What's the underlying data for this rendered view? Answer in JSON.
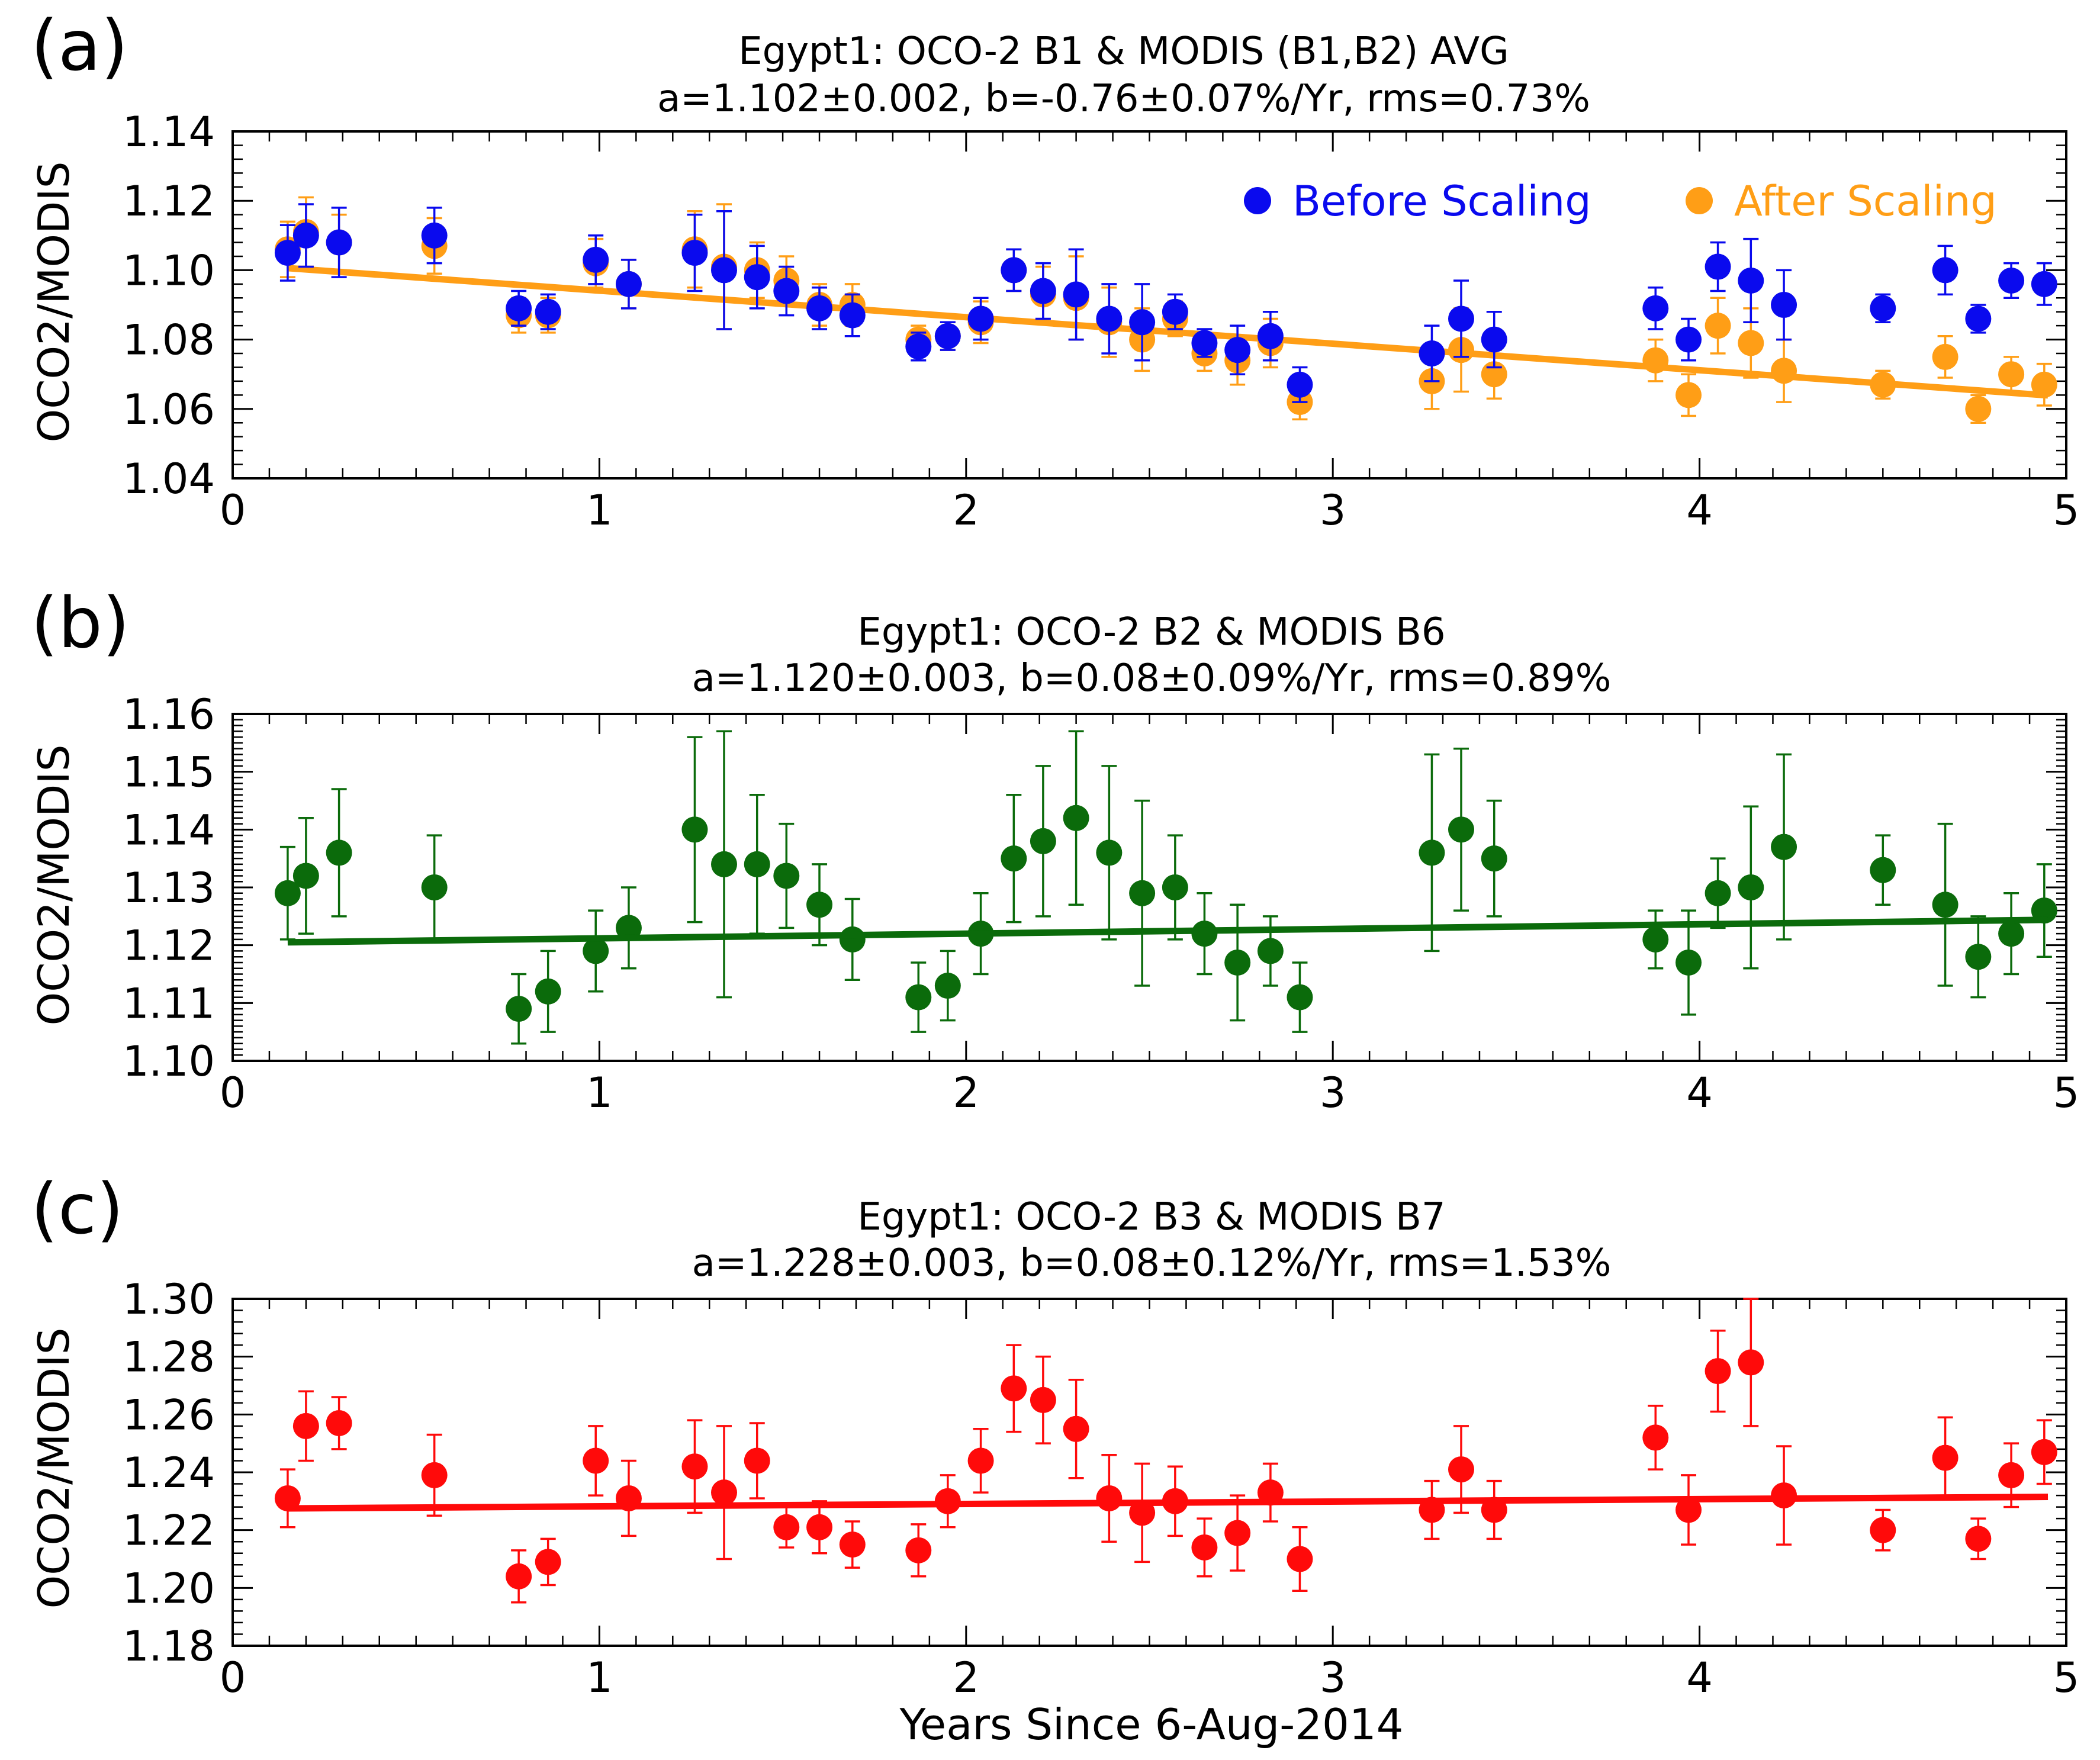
{
  "figure": {
    "xlabel": "Years Since 6-Aug-2014"
  },
  "colors": {
    "blue": "#0a0aee",
    "orange": "#ff9e16",
    "green": "#0b6b0b",
    "red": "#ff0a0a"
  },
  "chart_data": [
    {
      "panel_label": "(a)",
      "type": "scatter",
      "title": "Egypt1: OCO-2 B1 & MODIS (B1,B2) AVG",
      "subtitle": "a=1.102±0.002, b=-0.76±0.07%/Yr, rms=0.73%",
      "ylabel": "OCO2/MODIS",
      "xlim": [
        0,
        5
      ],
      "ylim": [
        1.04,
        1.14
      ],
      "xticks": [
        "0",
        "1",
        "2",
        "3",
        "4",
        "5"
      ],
      "yticks": [
        "1.04",
        "1.06",
        "1.08",
        "1.10",
        "1.12",
        "1.14"
      ],
      "legend": {
        "placement": "top-right",
        "entries": [
          "Before Scaling",
          "After Scaling"
        ]
      },
      "fit": {
        "x": [
          0.15,
          4.95
        ],
        "y": [
          1.1006,
          1.0639
        ],
        "color": "orange"
      },
      "series": [
        {
          "name": "After Scaling",
          "color": "orange",
          "x": [
            0.15,
            0.2,
            0.29,
            0.55,
            0.78,
            0.86,
            0.99,
            1.08,
            1.26,
            1.34,
            1.43,
            1.51,
            1.6,
            1.69,
            1.87,
            1.95,
            2.04,
            2.13,
            2.21,
            2.3,
            2.39,
            2.48,
            2.57,
            2.65,
            2.74,
            2.83,
            2.91,
            3.27,
            3.35,
            3.44,
            3.88,
            3.97,
            4.05,
            4.14,
            4.23,
            4.5,
            4.67,
            4.76,
            4.85,
            4.94
          ],
          "y": [
            1.106,
            1.111,
            1.108,
            1.107,
            1.087,
            1.087,
            1.102,
            1.096,
            1.106,
            1.101,
            1.1,
            1.097,
            1.09,
            1.09,
            1.08,
            1.081,
            1.085,
            1.1,
            1.093,
            1.092,
            1.085,
            1.08,
            1.086,
            1.076,
            1.074,
            1.079,
            1.062,
            1.068,
            1.077,
            1.07,
            1.074,
            1.064,
            1.084,
            1.079,
            1.071,
            1.067,
            1.075,
            1.06,
            1.07,
            1.067
          ],
          "err": [
            0.008,
            0.01,
            0.008,
            0.008,
            0.005,
            0.005,
            0.007,
            0.007,
            0.011,
            0.018,
            0.008,
            0.007,
            0.006,
            0.006,
            0.004,
            0.004,
            0.006,
            0.006,
            0.008,
            0.012,
            0.01,
            0.009,
            0.005,
            0.005,
            0.007,
            0.007,
            0.005,
            0.008,
            0.012,
            0.007,
            0.006,
            0.006,
            0.008,
            0.01,
            0.009,
            0.004,
            0.006,
            0.004,
            0.005,
            0.006
          ]
        },
        {
          "name": "Before Scaling",
          "color": "blue",
          "x": [
            0.15,
            0.2,
            0.29,
            0.55,
            0.78,
            0.86,
            0.99,
            1.08,
            1.26,
            1.34,
            1.43,
            1.51,
            1.6,
            1.69,
            1.87,
            1.95,
            2.04,
            2.13,
            2.21,
            2.3,
            2.39,
            2.48,
            2.57,
            2.65,
            2.74,
            2.83,
            2.91,
            3.27,
            3.35,
            3.44,
            3.88,
            3.97,
            4.05,
            4.14,
            4.23,
            4.5,
            4.67,
            4.76,
            4.85,
            4.94
          ],
          "y": [
            1.105,
            1.11,
            1.108,
            1.11,
            1.089,
            1.088,
            1.103,
            1.096,
            1.105,
            1.1,
            1.098,
            1.094,
            1.089,
            1.087,
            1.078,
            1.081,
            1.086,
            1.1,
            1.094,
            1.093,
            1.086,
            1.085,
            1.088,
            1.079,
            1.077,
            1.081,
            1.067,
            1.076,
            1.086,
            1.08,
            1.089,
            1.08,
            1.101,
            1.097,
            1.09,
            1.089,
            1.1,
            1.086,
            1.097,
            1.096
          ],
          "err": [
            0.008,
            0.009,
            0.01,
            0.008,
            0.005,
            0.005,
            0.007,
            0.007,
            0.011,
            0.017,
            0.009,
            0.007,
            0.006,
            0.006,
            0.004,
            0.004,
            0.006,
            0.006,
            0.008,
            0.013,
            0.01,
            0.011,
            0.005,
            0.004,
            0.007,
            0.007,
            0.005,
            0.008,
            0.011,
            0.008,
            0.006,
            0.006,
            0.007,
            0.012,
            0.01,
            0.004,
            0.007,
            0.004,
            0.005,
            0.006
          ]
        }
      ]
    },
    {
      "panel_label": "(b)",
      "type": "scatter",
      "title": "Egypt1: OCO-2 B2 & MODIS B6",
      "subtitle": "a=1.120±0.003, b=0.08±0.09%/Yr, rms=0.89%",
      "ylabel": "OCO2/MODIS",
      "xlim": [
        0,
        5
      ],
      "ylim": [
        1.1,
        1.16
      ],
      "xticks": [
        "0",
        "1",
        "2",
        "3",
        "4",
        "5"
      ],
      "yticks": [
        "1.10",
        "1.11",
        "1.12",
        "1.13",
        "1.14",
        "1.15",
        "1.16"
      ],
      "fit": {
        "x": [
          0.15,
          4.95
        ],
        "y": [
          1.1205,
          1.1244
        ],
        "color": "green"
      },
      "series": [
        {
          "name": "OCO-2 B2 / MODIS B6",
          "color": "green",
          "x": [
            0.15,
            0.2,
            0.29,
            0.55,
            0.78,
            0.86,
            0.99,
            1.08,
            1.26,
            1.34,
            1.43,
            1.51,
            1.6,
            1.69,
            1.87,
            1.95,
            2.04,
            2.13,
            2.21,
            2.3,
            2.39,
            2.48,
            2.57,
            2.65,
            2.74,
            2.83,
            2.91,
            3.27,
            3.35,
            3.44,
            3.88,
            3.97,
            4.05,
            4.14,
            4.23,
            4.5,
            4.67,
            4.76,
            4.85,
            4.94
          ],
          "y": [
            1.129,
            1.132,
            1.136,
            1.13,
            1.109,
            1.112,
            1.119,
            1.123,
            1.14,
            1.134,
            1.134,
            1.132,
            1.127,
            1.121,
            1.111,
            1.113,
            1.122,
            1.135,
            1.138,
            1.142,
            1.136,
            1.129,
            1.13,
            1.122,
            1.117,
            1.119,
            1.111,
            1.136,
            1.14,
            1.135,
            1.121,
            1.117,
            1.129,
            1.13,
            1.137,
            1.133,
            1.127,
            1.118,
            1.122,
            1.126
          ],
          "err": [
            0.008,
            0.01,
            0.011,
            0.009,
            0.006,
            0.007,
            0.007,
            0.007,
            0.016,
            0.023,
            0.012,
            0.009,
            0.007,
            0.007,
            0.006,
            0.006,
            0.007,
            0.011,
            0.013,
            0.015,
            0.015,
            0.016,
            0.009,
            0.007,
            0.01,
            0.006,
            0.006,
            0.017,
            0.014,
            0.01,
            0.005,
            0.009,
            0.006,
            0.014,
            0.016,
            0.006,
            0.014,
            0.007,
            0.007,
            0.008
          ]
        }
      ]
    },
    {
      "panel_label": "(c)",
      "type": "scatter",
      "title": "Egypt1: OCO-2 B3 & MODIS B7",
      "subtitle": "a=1.228±0.003, b=0.08±0.12%/Yr, rms=1.53%",
      "ylabel": "OCO2/MODIS",
      "xlim": [
        0,
        5
      ],
      "ylim": [
        1.18,
        1.3
      ],
      "xticks": [
        "0",
        "1",
        "2",
        "3",
        "4",
        "5"
      ],
      "yticks": [
        "1.18",
        "1.20",
        "1.22",
        "1.24",
        "1.26",
        "1.28",
        "1.30"
      ],
      "fit": {
        "x": [
          0.15,
          4.95
        ],
        "y": [
          1.2275,
          1.2315
        ],
        "color": "red"
      },
      "series": [
        {
          "name": "OCO-2 B3 / MODIS B7",
          "color": "red",
          "x": [
            0.15,
            0.2,
            0.29,
            0.55,
            0.78,
            0.86,
            0.99,
            1.08,
            1.26,
            1.34,
            1.43,
            1.51,
            1.6,
            1.69,
            1.87,
            1.95,
            2.04,
            2.13,
            2.21,
            2.3,
            2.39,
            2.48,
            2.57,
            2.65,
            2.74,
            2.83,
            2.91,
            3.27,
            3.35,
            3.44,
            3.88,
            3.97,
            4.05,
            4.14,
            4.23,
            4.5,
            4.67,
            4.76,
            4.85,
            4.94
          ],
          "y": [
            1.231,
            1.256,
            1.257,
            1.239,
            1.204,
            1.209,
            1.244,
            1.231,
            1.242,
            1.233,
            1.244,
            1.221,
            1.221,
            1.215,
            1.213,
            1.23,
            1.244,
            1.269,
            1.265,
            1.255,
            1.231,
            1.226,
            1.23,
            1.214,
            1.219,
            1.233,
            1.21,
            1.227,
            1.241,
            1.227,
            1.252,
            1.227,
            1.275,
            1.278,
            1.232,
            1.22,
            1.245,
            1.217,
            1.239,
            1.247
          ],
          "err": [
            0.01,
            0.012,
            0.009,
            0.014,
            0.009,
            0.008,
            0.012,
            0.013,
            0.016,
            0.023,
            0.013,
            0.007,
            0.009,
            0.008,
            0.009,
            0.009,
            0.011,
            0.015,
            0.015,
            0.017,
            0.015,
            0.017,
            0.012,
            0.01,
            0.013,
            0.01,
            0.011,
            0.01,
            0.015,
            0.01,
            0.011,
            0.012,
            0.014,
            0.022,
            0.017,
            0.007,
            0.014,
            0.007,
            0.011,
            0.011
          ]
        }
      ]
    }
  ]
}
